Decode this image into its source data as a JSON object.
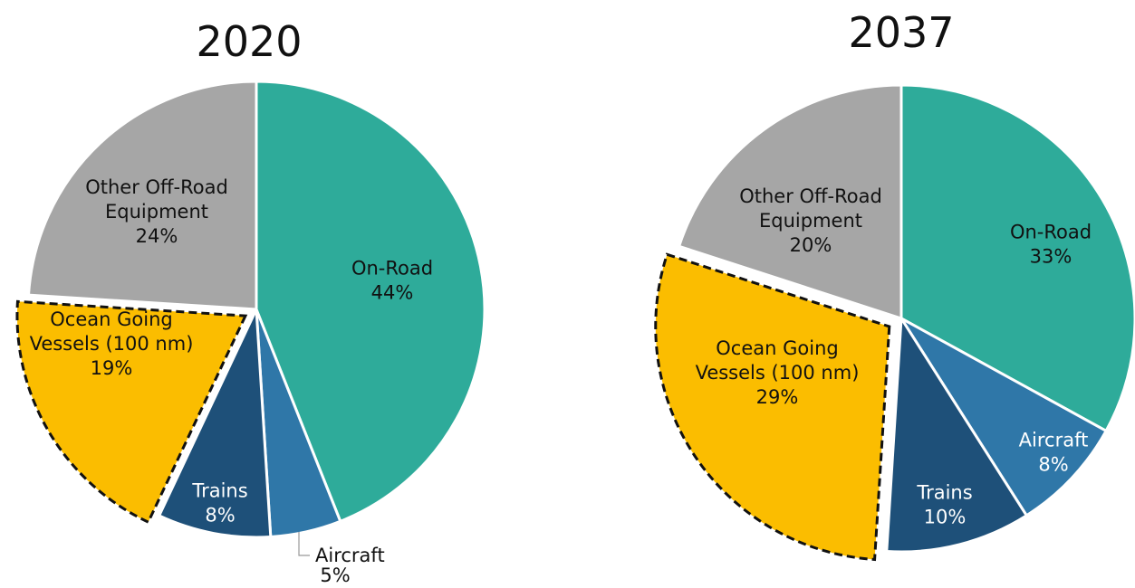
{
  "chart_data": [
    {
      "type": "pie",
      "title": "2020",
      "slices": [
        {
          "label": "On-Road",
          "value": 44,
          "display": "44%",
          "color": "#2eab9a",
          "label_color": "#111111"
        },
        {
          "label": "Aircraft",
          "value": 5,
          "display": "5%",
          "color": "#2f77a8",
          "label_color": "#111111"
        },
        {
          "label": "Trains",
          "value": 8,
          "display": "8%",
          "color": "#1e5079",
          "label_color": "#ffffff"
        },
        {
          "label": "Ocean Going Vessels (100 nm)",
          "value": 19,
          "display": "19%",
          "color": "#fbbd00",
          "label_color": "#111111",
          "exploded": true,
          "dashed_outline": true
        },
        {
          "label": "Other Off-Road Equipment",
          "value": 24,
          "display": "24%",
          "color": "#a6a6a6",
          "label_color": "#111111"
        }
      ]
    },
    {
      "type": "pie",
      "title": "2037",
      "slices": [
        {
          "label": "On-Road",
          "value": 33,
          "display": "33%",
          "color": "#2eab9a",
          "label_color": "#111111"
        },
        {
          "label": "Aircraft",
          "value": 8,
          "display": "8%",
          "color": "#2f77a8",
          "label_color": "#ffffff"
        },
        {
          "label": "Trains",
          "value": 10,
          "display": "10%",
          "color": "#1e5079",
          "label_color": "#ffffff"
        },
        {
          "label": "Ocean Going Vessels (100 nm)",
          "value": 29,
          "display": "29%",
          "color": "#fbbd00",
          "label_color": "#111111",
          "exploded": true,
          "dashed_outline": true
        },
        {
          "label": "Other Off-Road Equipment",
          "value": 20,
          "display": "20%",
          "color": "#a6a6a6",
          "label_color": "#111111"
        }
      ]
    }
  ]
}
